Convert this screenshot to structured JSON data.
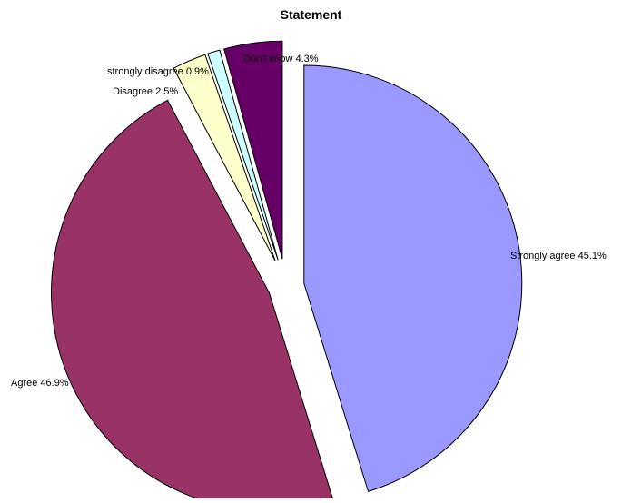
{
  "chart_data": {
    "type": "pie",
    "title": "Statement",
    "exploded": true,
    "slices": [
      {
        "label": "Strongly agree",
        "value": 45.1,
        "value_label": "45.1%",
        "color": "#9999FF",
        "display": "Strongly agree 45.1%"
      },
      {
        "label": "Agree",
        "value": 46.9,
        "value_label": "46.9%",
        "color": "#993366",
        "display": "Agree 46.9%"
      },
      {
        "label": "Disagree",
        "value": 2.5,
        "value_label": "2.5%",
        "color": "#FFFFCC",
        "display": "Disagree 2.5%"
      },
      {
        "label": "strongly disagree",
        "value": 0.9,
        "value_label": "0.9%",
        "color": "#CCFFFF",
        "display": "strongly disagree 0.9%"
      },
      {
        "label": "Don't know",
        "value": 4.3,
        "value_label": "4.3%",
        "color": "#660066",
        "display": "Don’t know 4.3%"
      }
    ]
  }
}
